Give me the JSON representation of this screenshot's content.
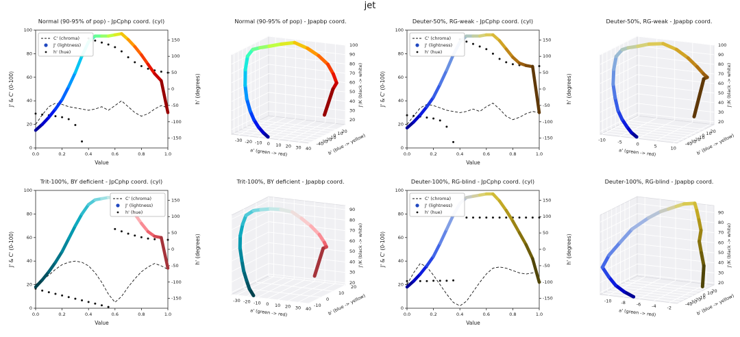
{
  "figure_title": "jet",
  "chart_data": [
    {
      "type": "line",
      "title": "Normal (90-95% of pop) - JpCphp coord. (cyl)",
      "xlabel": "Value",
      "ylabel_left": "J' & C' (0-100)",
      "ylabel_right": "h' (degrees)",
      "xlim": [
        0,
        1
      ],
      "ylim_left": [
        0,
        100
      ],
      "ylim_right": [
        -180,
        180
      ],
      "xticks": [
        0.0,
        0.2,
        0.4,
        0.6,
        0.8,
        1.0
      ],
      "yticks_left": [
        0,
        20,
        40,
        60,
        80,
        100
      ],
      "yticks_right": [
        -150,
        -100,
        -50,
        0,
        50,
        100,
        150
      ],
      "legend": {
        "position": "nw",
        "entries": [
          "C' (chroma)",
          "J' (lightness)",
          "h' (hue)"
        ]
      },
      "x": [
        0,
        0.05,
        0.1,
        0.15,
        0.2,
        0.25,
        0.3,
        0.35,
        0.4,
        0.45,
        0.5,
        0.55,
        0.6,
        0.65,
        0.7,
        0.75,
        0.8,
        0.85,
        0.9,
        0.95,
        1.0
      ],
      "lightness": [
        15,
        20,
        26,
        33,
        41,
        52,
        64,
        78,
        90,
        95,
        95,
        95,
        96,
        97,
        92,
        86,
        79,
        71,
        63,
        57,
        30
      ],
      "chroma": [
        20,
        28,
        35,
        38,
        37,
        35,
        34,
        33,
        32,
        33,
        35,
        32,
        36,
        40,
        35,
        30,
        27,
        29,
        33,
        36,
        34
      ],
      "hue": [
        -75,
        -78,
        -80,
        -83,
        -86,
        -92,
        -110,
        -160,
        155,
        148,
        142,
        136,
        128,
        115,
        97,
        82,
        70,
        62,
        57,
        53,
        50
      ],
      "colors": [
        "#000083",
        "#0000e6",
        "#0050ff",
        "#00b0ff",
        "#20ffd0",
        "#80ff80",
        "#d4ff30",
        "#ffb000",
        "#ff5000",
        "#e00000",
        "#800000"
      ]
    },
    {
      "type": "line3d",
      "title": "Normal (90-95% of pop) - Jpapbp coord.",
      "xlabel": "a' (green -> red)",
      "ylabel": "b' (blue -> yellow)",
      "zlabel": "J'/K (black -> white)",
      "xticks": [
        -30,
        -20,
        -10,
        0,
        10,
        20,
        30,
        40
      ],
      "yticks": [
        20,
        10,
        0,
        -10,
        -20,
        -30,
        -40
      ],
      "zticks": [
        20,
        30,
        40,
        50,
        60,
        70,
        80,
        90,
        100
      ],
      "a": [
        -3,
        -6,
        -10,
        -15,
        -20,
        -26,
        -31,
        -35,
        -37,
        -36,
        -33,
        -28,
        -20,
        -10,
        2,
        14,
        25,
        33,
        38,
        36,
        30
      ],
      "b": [
        -40,
        -44,
        -46,
        -45,
        -42,
        -36,
        -28,
        -18,
        -8,
        2,
        12,
        22,
        32,
        40,
        42,
        40,
        36,
        30,
        26,
        22,
        16
      ],
      "J": [
        15,
        20,
        26,
        33,
        41,
        52,
        64,
        78,
        90,
        95,
        95,
        95,
        96,
        97,
        92,
        86,
        79,
        71,
        63,
        57,
        30
      ],
      "colors": [
        "#000083",
        "#0000e6",
        "#0050ff",
        "#00b0ff",
        "#20ffd0",
        "#80ff80",
        "#d4ff30",
        "#ffb000",
        "#ff5000",
        "#e00000",
        "#800000"
      ]
    },
    {
      "type": "line",
      "title": "Deuter-50%, RG-weak - JpCphp coord. (cyl)",
      "xlabel": "Value",
      "ylabel_left": "J' & C' (0-100)",
      "ylabel_right": "h' (degrees)",
      "xlim": [
        0,
        1
      ],
      "ylim_left": [
        0,
        100
      ],
      "ylim_right": [
        -180,
        180
      ],
      "xticks": [
        0.0,
        0.2,
        0.4,
        0.6,
        0.8,
        1.0
      ],
      "yticks_left": [
        0,
        20,
        40,
        60,
        80,
        100
      ],
      "yticks_right": [
        -150,
        -100,
        -50,
        0,
        50,
        100,
        150
      ],
      "legend": {
        "position": "nw",
        "entries": [
          "C' (chroma)",
          "J' (lightness)",
          "h' (hue)"
        ]
      },
      "x": [
        0,
        0.05,
        0.1,
        0.15,
        0.2,
        0.25,
        0.3,
        0.35,
        0.4,
        0.45,
        0.5,
        0.55,
        0.6,
        0.65,
        0.7,
        0.75,
        0.8,
        0.85,
        0.9,
        0.95,
        1.0
      ],
      "lightness": [
        17,
        22,
        28,
        35,
        43,
        54,
        66,
        79,
        90,
        95,
        95,
        95,
        96,
        96,
        91,
        84,
        77,
        72,
        70,
        69,
        30
      ],
      "chroma": [
        20,
        27,
        34,
        37,
        36,
        34,
        32,
        31,
        30,
        31,
        33,
        31,
        35,
        38,
        33,
        27,
        24,
        26,
        29,
        31,
        30
      ],
      "hue": [
        -80,
        -82,
        -84,
        -87,
        -90,
        -96,
        -115,
        -162,
        152,
        145,
        138,
        130,
        122,
        108,
        92,
        82,
        76,
        73,
        72,
        71,
        70
      ],
      "colors": [
        "#000080",
        "#0008dc",
        "#2a50e8",
        "#5e86e4",
        "#8fb4dc",
        "#b9cdb4",
        "#ded267",
        "#d9b02a",
        "#b97a14",
        "#8f540c",
        "#4f2e06"
      ]
    },
    {
      "type": "line3d",
      "title": "Deuter-50%, RG-weak - Jpapbp coord.",
      "xlabel": "a' (green -> red)",
      "ylabel": "b' (blue -> yellow)",
      "zlabel": "J'/K (black -> white)",
      "xticks": [
        -10,
        -5,
        0,
        5,
        10
      ],
      "yticks": [
        20,
        10,
        0,
        -10,
        -20,
        -30,
        -40
      ],
      "zticks": [
        20,
        30,
        40,
        50,
        60,
        70,
        80,
        90,
        100
      ],
      "a": [
        -1,
        -2,
        -3,
        -4.5,
        -6,
        -7.5,
        -9,
        -10,
        -10.5,
        -10,
        -9.5,
        -8,
        -6,
        -3,
        0.5,
        4,
        7,
        9.5,
        11,
        10.5,
        8.5
      ],
      "b": [
        -40,
        -44,
        -46,
        -45,
        -42,
        -36,
        -28,
        -18,
        -8,
        2,
        12,
        22,
        32,
        40,
        42,
        40,
        36,
        30,
        26,
        22,
        16
      ],
      "J": [
        17,
        22,
        28,
        35,
        43,
        54,
        66,
        79,
        90,
        95,
        95,
        95,
        96,
        96,
        91,
        84,
        77,
        72,
        70,
        69,
        30
      ],
      "colors": [
        "#000080",
        "#0008dc",
        "#2a50e8",
        "#5e86e4",
        "#8fb4dc",
        "#b9cdb4",
        "#ded267",
        "#d9b02a",
        "#b97a14",
        "#8f540c",
        "#4f2e06"
      ]
    },
    {
      "type": "line",
      "title": "Trit-100%, BY deficient - JpCphp coord. (cyl)",
      "xlabel": "Value",
      "ylabel_left": "J' & C' (0-100)",
      "ylabel_right": "h' (degrees)",
      "xlim": [
        0,
        1
      ],
      "ylim_left": [
        0,
        100
      ],
      "ylim_right": [
        -180,
        180
      ],
      "xticks": [
        0.0,
        0.2,
        0.4,
        0.6,
        0.8,
        1.0
      ],
      "yticks_left": [
        0,
        20,
        40,
        60,
        80,
        100
      ],
      "yticks_right": [
        -150,
        -100,
        -50,
        0,
        50,
        100,
        150
      ],
      "legend": {
        "position": "ne",
        "entries": [
          "C' (chroma)",
          "J' (lightness)",
          "h' (hue)"
        ]
      },
      "x": [
        0,
        0.05,
        0.1,
        0.15,
        0.2,
        0.25,
        0.3,
        0.35,
        0.4,
        0.45,
        0.5,
        0.55,
        0.6,
        0.65,
        0.7,
        0.75,
        0.8,
        0.85,
        0.9,
        0.95,
        1.0
      ],
      "lightness": [
        18,
        24,
        31,
        39,
        48,
        59,
        70,
        80,
        88,
        92,
        93,
        94,
        94,
        92,
        87,
        80,
        72,
        65,
        61,
        60,
        34
      ],
      "chroma": [
        20,
        24,
        28,
        33,
        37,
        39,
        40,
        39,
        36,
        30,
        22,
        12,
        5,
        10,
        18,
        25,
        31,
        35,
        38,
        36,
        33
      ],
      "hue": [
        -120,
        -126,
        -131,
        -136,
        -141,
        -146,
        -151,
        -156,
        -161,
        -166,
        -171,
        -176,
        62,
        55,
        48,
        42,
        37,
        33,
        31,
        30,
        29
      ],
      "colors": [
        "#003a44",
        "#00596b",
        "#007d92",
        "#00a2b8",
        "#3cc3d4",
        "#8cdde2",
        "#d8ebe8",
        "#f7d9d8",
        "#ff9fa6",
        "#e8505c",
        "#8f2a30"
      ]
    },
    {
      "type": "line3d",
      "title": "Trit-100%, BY deficient - Jpapbp coord.",
      "xlabel": "a' (green -> red)",
      "ylabel": "b' (blue -> yellow)",
      "zlabel": "J'/K (black -> white)",
      "xticks": [
        -30,
        -20,
        -10,
        0,
        10,
        20,
        30,
        40
      ],
      "yticks": [
        20,
        10,
        0,
        -10
      ],
      "zticks": [
        20,
        30,
        40,
        50,
        60,
        70,
        80,
        90
      ],
      "a": [
        -16,
        -20,
        -24,
        -28,
        -31,
        -34,
        -35,
        -35,
        -33,
        -28,
        -22,
        -14,
        -5,
        5,
        14,
        22,
        29,
        34,
        36,
        34,
        28
      ],
      "b": [
        -8,
        -8,
        -7,
        -6,
        -5,
        -4,
        -3,
        -1,
        0,
        2,
        3,
        4,
        5,
        6,
        6,
        7,
        8,
        8,
        8,
        7,
        5
      ],
      "J": [
        18,
        24,
        31,
        39,
        48,
        59,
        70,
        80,
        88,
        92,
        93,
        94,
        94,
        92,
        87,
        80,
        72,
        65,
        61,
        60,
        34
      ],
      "colors": [
        "#003a44",
        "#00596b",
        "#007d92",
        "#00a2b8",
        "#3cc3d4",
        "#8cdde2",
        "#d8ebe8",
        "#f7d9d8",
        "#ff9fa6",
        "#e8505c",
        "#8f2a30"
      ]
    },
    {
      "type": "line",
      "title": "Deuter-100%, RG-blind - JpCphp coord. (cyl)",
      "xlabel": "Value",
      "ylabel_left": "J' & C' (0-100)",
      "ylabel_right": "h' (degrees)",
      "xlim": [
        0,
        1
      ],
      "ylim_left": [
        0,
        100
      ],
      "ylim_right": [
        -180,
        180
      ],
      "xticks": [
        0.0,
        0.2,
        0.4,
        0.6,
        0.8,
        1.0
      ],
      "yticks_left": [
        0,
        20,
        40,
        60,
        80,
        100
      ],
      "yticks_right": [
        -150,
        -100,
        -50,
        0,
        50,
        100,
        150
      ],
      "legend": {
        "position": "nw",
        "entries": [
          "C' (chroma)",
          "J' (lightness)",
          "h' (hue)"
        ]
      },
      "x": [
        0,
        0.05,
        0.1,
        0.15,
        0.2,
        0.25,
        0.3,
        0.35,
        0.4,
        0.45,
        0.5,
        0.55,
        0.6,
        0.65,
        0.7,
        0.75,
        0.8,
        0.85,
        0.9,
        0.95,
        1.0
      ],
      "lightness": [
        18,
        23,
        29,
        36,
        44,
        55,
        67,
        79,
        89,
        94,
        95,
        96,
        97,
        97,
        91,
        83,
        74,
        64,
        54,
        42,
        22
      ],
      "chroma": [
        20,
        30,
        38,
        35,
        28,
        20,
        12,
        5,
        2,
        6,
        14,
        22,
        29,
        34,
        35,
        34,
        32,
        30,
        29,
        30,
        31
      ],
      "hue": [
        -97,
        -97,
        -97,
        -97,
        -96,
        -96,
        -96,
        -95,
        null,
        97,
        97,
        97,
        97,
        97,
        97,
        97,
        97,
        97,
        97,
        97,
        97
      ],
      "colors": [
        "#000080",
        "#0008dc",
        "#3358e8",
        "#7394e6",
        "#aebfe2",
        "#cfcdb6",
        "#ddd25e",
        "#cdb32a",
        "#a58c14",
        "#7b690c",
        "#423906"
      ]
    },
    {
      "type": "line3d",
      "title": "Deuter-100%, RG-blind - Jpapbp coord.",
      "xlabel": "a' (green -> red)",
      "ylabel": "b' (blue -> yellow)",
      "zlabel": "J'/K (black -> white)",
      "xticks": [
        -10,
        -8,
        -6,
        -4,
        -2
      ],
      "yticks": [
        20,
        10,
        0,
        -10,
        -20,
        -30,
        -40
      ],
      "zticks": [
        20,
        30,
        40,
        50,
        60,
        70,
        80,
        90
      ],
      "a": [
        -7,
        -8,
        -9,
        -10,
        -11,
        -10.5,
        -9.5,
        -8.5,
        -7,
        -6,
        -5.5,
        -5,
        -4.5,
        -3.5,
        -3,
        -2.5,
        -2,
        -2,
        -1.5,
        -1,
        -1
      ],
      "b": [
        -40,
        -44,
        -46,
        -44,
        -41,
        -35,
        -27,
        -17,
        -6,
        4,
        13,
        22,
        31,
        38,
        34,
        30,
        26,
        22,
        18,
        15,
        12
      ],
      "J": [
        18,
        23,
        29,
        36,
        44,
        55,
        67,
        79,
        89,
        94,
        95,
        96,
        97,
        97,
        91,
        83,
        74,
        64,
        54,
        42,
        22
      ],
      "colors": [
        "#000080",
        "#0008dc",
        "#3358e8",
        "#7394e6",
        "#aebfe2",
        "#cfcdb6",
        "#ddd25e",
        "#cdb32a",
        "#a58c14",
        "#7b690c",
        "#423906"
      ]
    }
  ]
}
